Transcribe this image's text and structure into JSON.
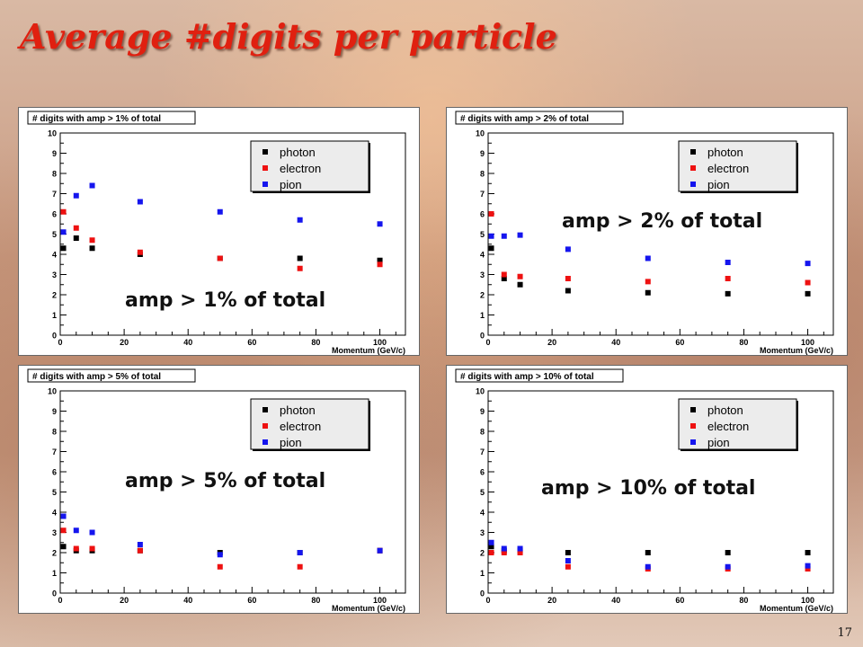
{
  "slide": {
    "title": "Average #digits per particle",
    "page_number": "17"
  },
  "colors": {
    "photon": "#000000",
    "electron": "#ee1111",
    "pion": "#1515ee",
    "title": "#e02010"
  },
  "chart_data": [
    {
      "type": "scatter",
      "title": "# digits with amp > 1% of total",
      "overlay_text": "amp > 1% of total",
      "xlabel": "Momentum (GeV/c)",
      "ylabel": "",
      "xlim": [
        0,
        108
      ],
      "ylim": [
        0,
        10
      ],
      "x_ticks": [
        0,
        20,
        40,
        60,
        80,
        100
      ],
      "y_ticks": [
        0,
        1,
        2,
        3,
        4,
        5,
        6,
        7,
        8,
        9,
        10
      ],
      "legend_position": "top-right",
      "series": [
        {
          "name": "photon",
          "color": "#000000",
          "points": [
            [
              1,
              4.3
            ],
            [
              5,
              4.8
            ],
            [
              10,
              4.3
            ],
            [
              25,
              4.0
            ],
            [
              50,
              3.8
            ],
            [
              75,
              3.8
            ],
            [
              100,
              3.7
            ]
          ]
        },
        {
          "name": "electron",
          "color": "#ee1111",
          "points": [
            [
              1,
              6.1
            ],
            [
              5,
              5.3
            ],
            [
              10,
              4.7
            ],
            [
              25,
              4.1
            ],
            [
              50,
              3.8
            ],
            [
              75,
              3.3
            ],
            [
              100,
              3.5
            ]
          ]
        },
        {
          "name": "pion",
          "color": "#1515ee",
          "points": [
            [
              1,
              5.1
            ],
            [
              5,
              6.9
            ],
            [
              10,
              7.4
            ],
            [
              25,
              6.6
            ],
            [
              50,
              6.1
            ],
            [
              75,
              5.7
            ],
            [
              100,
              5.5
            ]
          ]
        }
      ]
    },
    {
      "type": "scatter",
      "title": "# digits with amp > 2% of total",
      "overlay_text": "amp > 2% of total",
      "xlabel": "Momentum (GeV/c)",
      "ylabel": "",
      "xlim": [
        0,
        108
      ],
      "ylim": [
        0,
        10
      ],
      "x_ticks": [
        0,
        20,
        40,
        60,
        80,
        100
      ],
      "y_ticks": [
        0,
        1,
        2,
        3,
        4,
        5,
        6,
        7,
        8,
        9,
        10
      ],
      "legend_position": "top-right",
      "series": [
        {
          "name": "photon",
          "color": "#000000",
          "points": [
            [
              1,
              4.3
            ],
            [
              5,
              2.8
            ],
            [
              10,
              2.5
            ],
            [
              25,
              2.2
            ],
            [
              50,
              2.1
            ],
            [
              75,
              2.05
            ],
            [
              100,
              2.05
            ]
          ]
        },
        {
          "name": "electron",
          "color": "#ee1111",
          "points": [
            [
              1,
              6.0
            ],
            [
              5,
              3.0
            ],
            [
              10,
              2.9
            ],
            [
              25,
              2.8
            ],
            [
              50,
              2.65
            ],
            [
              75,
              2.8
            ],
            [
              100,
              2.6
            ]
          ]
        },
        {
          "name": "pion",
          "color": "#1515ee",
          "points": [
            [
              1,
              4.9
            ],
            [
              5,
              4.9
            ],
            [
              10,
              4.95
            ],
            [
              25,
              4.25
            ],
            [
              50,
              3.8
            ],
            [
              75,
              3.6
            ],
            [
              100,
              3.55
            ]
          ]
        }
      ]
    },
    {
      "type": "scatter",
      "title": "# digits with amp > 5% of total",
      "overlay_text": "amp > 5% of total",
      "xlabel": "Momentum (GeV/c)",
      "ylabel": "",
      "xlim": [
        0,
        108
      ],
      "ylim": [
        0,
        10
      ],
      "x_ticks": [
        0,
        20,
        40,
        60,
        80,
        100
      ],
      "y_ticks": [
        0,
        1,
        2,
        3,
        4,
        5,
        6,
        7,
        8,
        9,
        10
      ],
      "legend_position": "top-right",
      "series": [
        {
          "name": "photon",
          "color": "#000000",
          "points": [
            [
              1,
              2.3
            ],
            [
              5,
              2.1
            ],
            [
              10,
              2.1
            ],
            [
              25,
              2.1
            ],
            [
              50,
              2.0
            ],
            [
              75,
              2.0
            ],
            [
              100,
              2.1
            ]
          ]
        },
        {
          "name": "electron",
          "color": "#ee1111",
          "points": [
            [
              1,
              3.1
            ],
            [
              5,
              2.2
            ],
            [
              10,
              2.2
            ],
            [
              25,
              2.1
            ],
            [
              50,
              1.3
            ],
            [
              75,
              1.3
            ],
            [
              100,
              2.1
            ]
          ]
        },
        {
          "name": "pion",
          "color": "#1515ee",
          "points": [
            [
              1,
              3.8
            ],
            [
              5,
              3.1
            ],
            [
              10,
              3.0
            ],
            [
              25,
              2.4
            ],
            [
              50,
              1.9
            ],
            [
              75,
              2.0
            ],
            [
              100,
              2.1
            ]
          ]
        }
      ]
    },
    {
      "type": "scatter",
      "title": "# digits with amp > 10% of total",
      "overlay_text": "amp > 10% of total",
      "xlabel": "Momentum (GeV/c)",
      "ylabel": "",
      "xlim": [
        0,
        108
      ],
      "ylim": [
        0,
        10
      ],
      "x_ticks": [
        0,
        20,
        40,
        60,
        80,
        100
      ],
      "y_ticks": [
        0,
        1,
        2,
        3,
        4,
        5,
        6,
        7,
        8,
        9,
        10
      ],
      "legend_position": "top-right",
      "series": [
        {
          "name": "photon",
          "color": "#000000",
          "points": [
            [
              1,
              2.3
            ],
            [
              5,
              2.1
            ],
            [
              10,
              2.1
            ],
            [
              25,
              2.0
            ],
            [
              50,
              2.0
            ],
            [
              75,
              2.0
            ],
            [
              100,
              2.0
            ]
          ]
        },
        {
          "name": "electron",
          "color": "#ee1111",
          "points": [
            [
              1,
              2.0
            ],
            [
              5,
              2.0
            ],
            [
              10,
              2.0
            ],
            [
              25,
              1.3
            ],
            [
              50,
              1.2
            ],
            [
              75,
              1.2
            ],
            [
              100,
              1.2
            ]
          ]
        },
        {
          "name": "pion",
          "color": "#1515ee",
          "points": [
            [
              1,
              2.5
            ],
            [
              5,
              2.2
            ],
            [
              10,
              2.2
            ],
            [
              25,
              1.6
            ],
            [
              50,
              1.3
            ],
            [
              75,
              1.3
            ],
            [
              100,
              1.35
            ]
          ]
        }
      ]
    }
  ]
}
